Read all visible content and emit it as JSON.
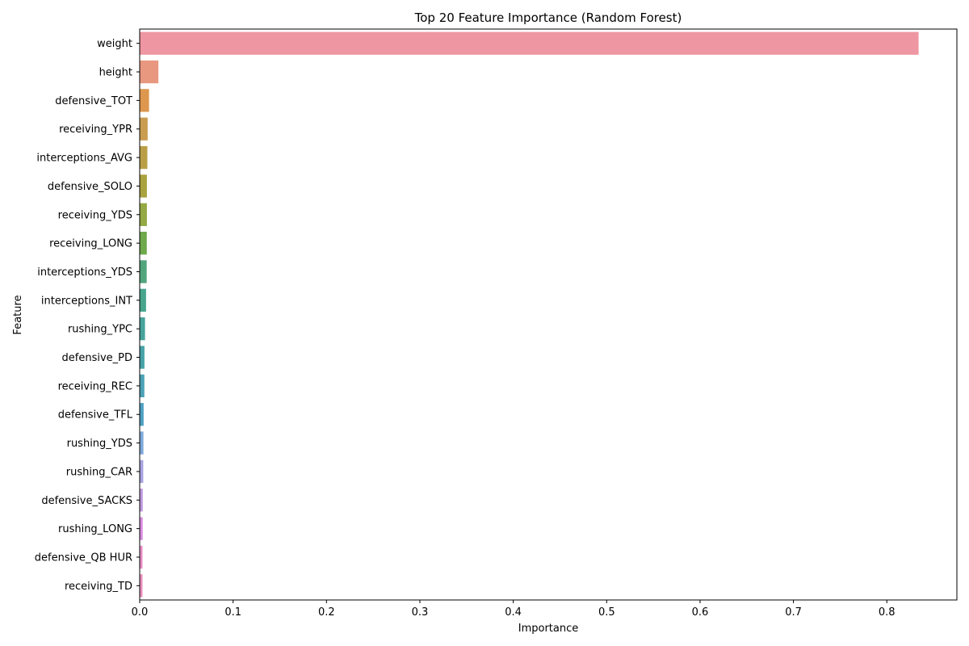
{
  "chart_data": {
    "type": "bar",
    "orientation": "horizontal",
    "title": "Top 20 Feature Importance (Random Forest)",
    "xlabel": "Importance",
    "ylabel": "Feature",
    "xlim": [
      0,
      0.875
    ],
    "xticks": [
      "0.0",
      "0.1",
      "0.2",
      "0.3",
      "0.4",
      "0.5",
      "0.6",
      "0.7",
      "0.8"
    ],
    "grid": false,
    "categories": [
      "weight",
      "height",
      "defensive_TOT",
      "receiving_YPR",
      "interceptions_AVG",
      "defensive_SOLO",
      "receiving_YDS",
      "receiving_LONG",
      "interceptions_YDS",
      "interceptions_INT",
      "rushing_YPC",
      "defensive_PD",
      "receiving_REC",
      "defensive_TFL",
      "rushing_YDS",
      "rushing_CAR",
      "defensive_SACKS",
      "rushing_LONG",
      "defensive_QB HUR",
      "receiving_TD"
    ],
    "values": [
      0.834,
      0.02,
      0.01,
      0.0085,
      0.0082,
      0.0077,
      0.0077,
      0.0076,
      0.0075,
      0.0068,
      0.0057,
      0.0051,
      0.005,
      0.0042,
      0.004,
      0.0038,
      0.0033,
      0.0032,
      0.003,
      0.003
    ],
    "colors": [
      "#ee96a1",
      "#e99880",
      "#dd974e",
      "#c99c50",
      "#ba9e47",
      "#a9a23f",
      "#94a843",
      "#6ea94c",
      "#51a57d",
      "#47a58e",
      "#47a39b",
      "#48a2a8",
      "#4ba2b6",
      "#4ea0c3",
      "#7ea8d8",
      "#a7a3e0",
      "#c099e0",
      "#d98be0",
      "#e78dc4",
      "#ea8ebc"
    ]
  }
}
